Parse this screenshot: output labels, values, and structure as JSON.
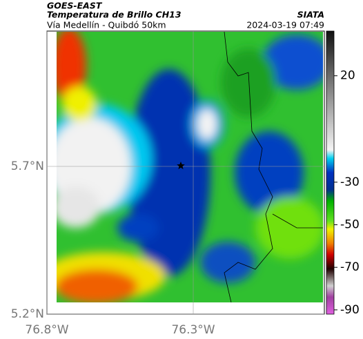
{
  "header": {
    "source": "GOES-EAST",
    "title": "Temperatura de Brillo CH13",
    "subtitle": "Vía Medellín - Quibdó 50km",
    "organization": "SIATA",
    "timestamp": "2024-03-19 07:49"
  },
  "map": {
    "latlim": [
      5.2,
      6.158
    ],
    "lonlim": [
      -76.8,
      -75.852
    ],
    "latticks": [
      {
        "value": 5.7,
        "label": "5.7°N"
      },
      {
        "value": 5.2,
        "label": "5.2°N"
      }
    ],
    "lonticks": [
      {
        "value": -76.8,
        "label": "76.8°W"
      },
      {
        "value": -76.3,
        "label": "76.3°W"
      }
    ]
  },
  "colorbar": {
    "lim": [
      -92,
      41
    ],
    "ticks": [
      20,
      -30,
      -50,
      -70,
      -90
    ]
  }
}
